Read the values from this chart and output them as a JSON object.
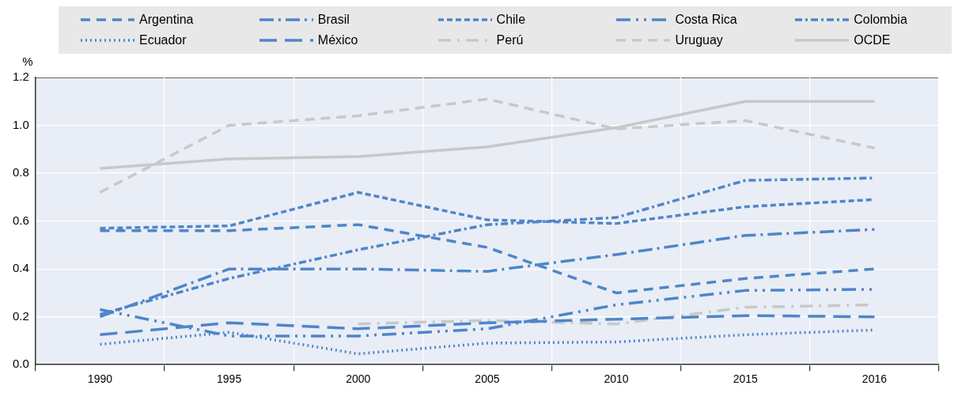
{
  "chart_data": {
    "type": "line",
    "ylabel": "%",
    "categories": [
      "1990",
      "1995",
      "2000",
      "2005",
      "2010",
      "2015",
      "2016"
    ],
    "ylim": [
      0,
      1.2
    ],
    "yticks": [
      {
        "value": 0,
        "label": "0.0"
      },
      0.2,
      0.4,
      0.6,
      0.8,
      {
        "value": 1,
        "label": "1.0"
      },
      1.2
    ],
    "grid": true,
    "legend": "top",
    "series": [
      {
        "name": "Argentina",
        "color": "#4e86c8",
        "line_style": "dashed",
        "values": [
          0.56,
          0.56,
          0.585,
          0.49,
          0.3,
          0.36,
          0.4
        ]
      },
      {
        "name": "Brasil",
        "color": "#4e86c8",
        "line_style": "dashed",
        "values": [
          0.2,
          0.4,
          0.4,
          0.39,
          0.46,
          0.54,
          0.565
        ]
      },
      {
        "name": "Chile",
        "color": "#4e86c8",
        "line_style": "dashed",
        "values": [
          0.57,
          0.58,
          0.72,
          0.605,
          0.59,
          0.66,
          0.69
        ]
      },
      {
        "name": "Costa Rica",
        "color": "#4e86c8",
        "line_style": "dashed",
        "values": [
          0.23,
          0.12,
          0.12,
          0.15,
          0.25,
          0.31,
          0.315
        ]
      },
      {
        "name": "Colombia",
        "color": "#4e86c8",
        "line_style": "dashed",
        "values": [
          0.21,
          0.36,
          0.48,
          0.585,
          0.615,
          0.77,
          0.78
        ]
      },
      {
        "name": "Ecuador",
        "color": "#4e86c8",
        "line_style": "dotted",
        "values": [
          0.085,
          0.135,
          0.045,
          0.09,
          0.095,
          0.125,
          0.145
        ]
      },
      {
        "name": "México",
        "color": "#4e86c8",
        "line_style": "dashed",
        "values": [
          0.125,
          0.175,
          0.15,
          0.175,
          0.19,
          0.205,
          0.2
        ]
      },
      {
        "name": "Perú",
        "color": "#c8c8c8",
        "line_style": "dashed",
        "values": [
          null,
          null,
          0.17,
          0.185,
          0.17,
          0.24,
          0.25
        ]
      },
      {
        "name": "Uruguay",
        "color": "#c8c8c8",
        "line_style": "dashed",
        "values": [
          0.72,
          1.0,
          1.04,
          1.11,
          0.985,
          1.02,
          0.905
        ]
      },
      {
        "name": "OCDE",
        "color": "#c8c8c8",
        "line_style": "solid",
        "values": [
          0.82,
          0.86,
          0.87,
          0.91,
          0.99,
          1.1,
          1.1
        ]
      }
    ]
  }
}
